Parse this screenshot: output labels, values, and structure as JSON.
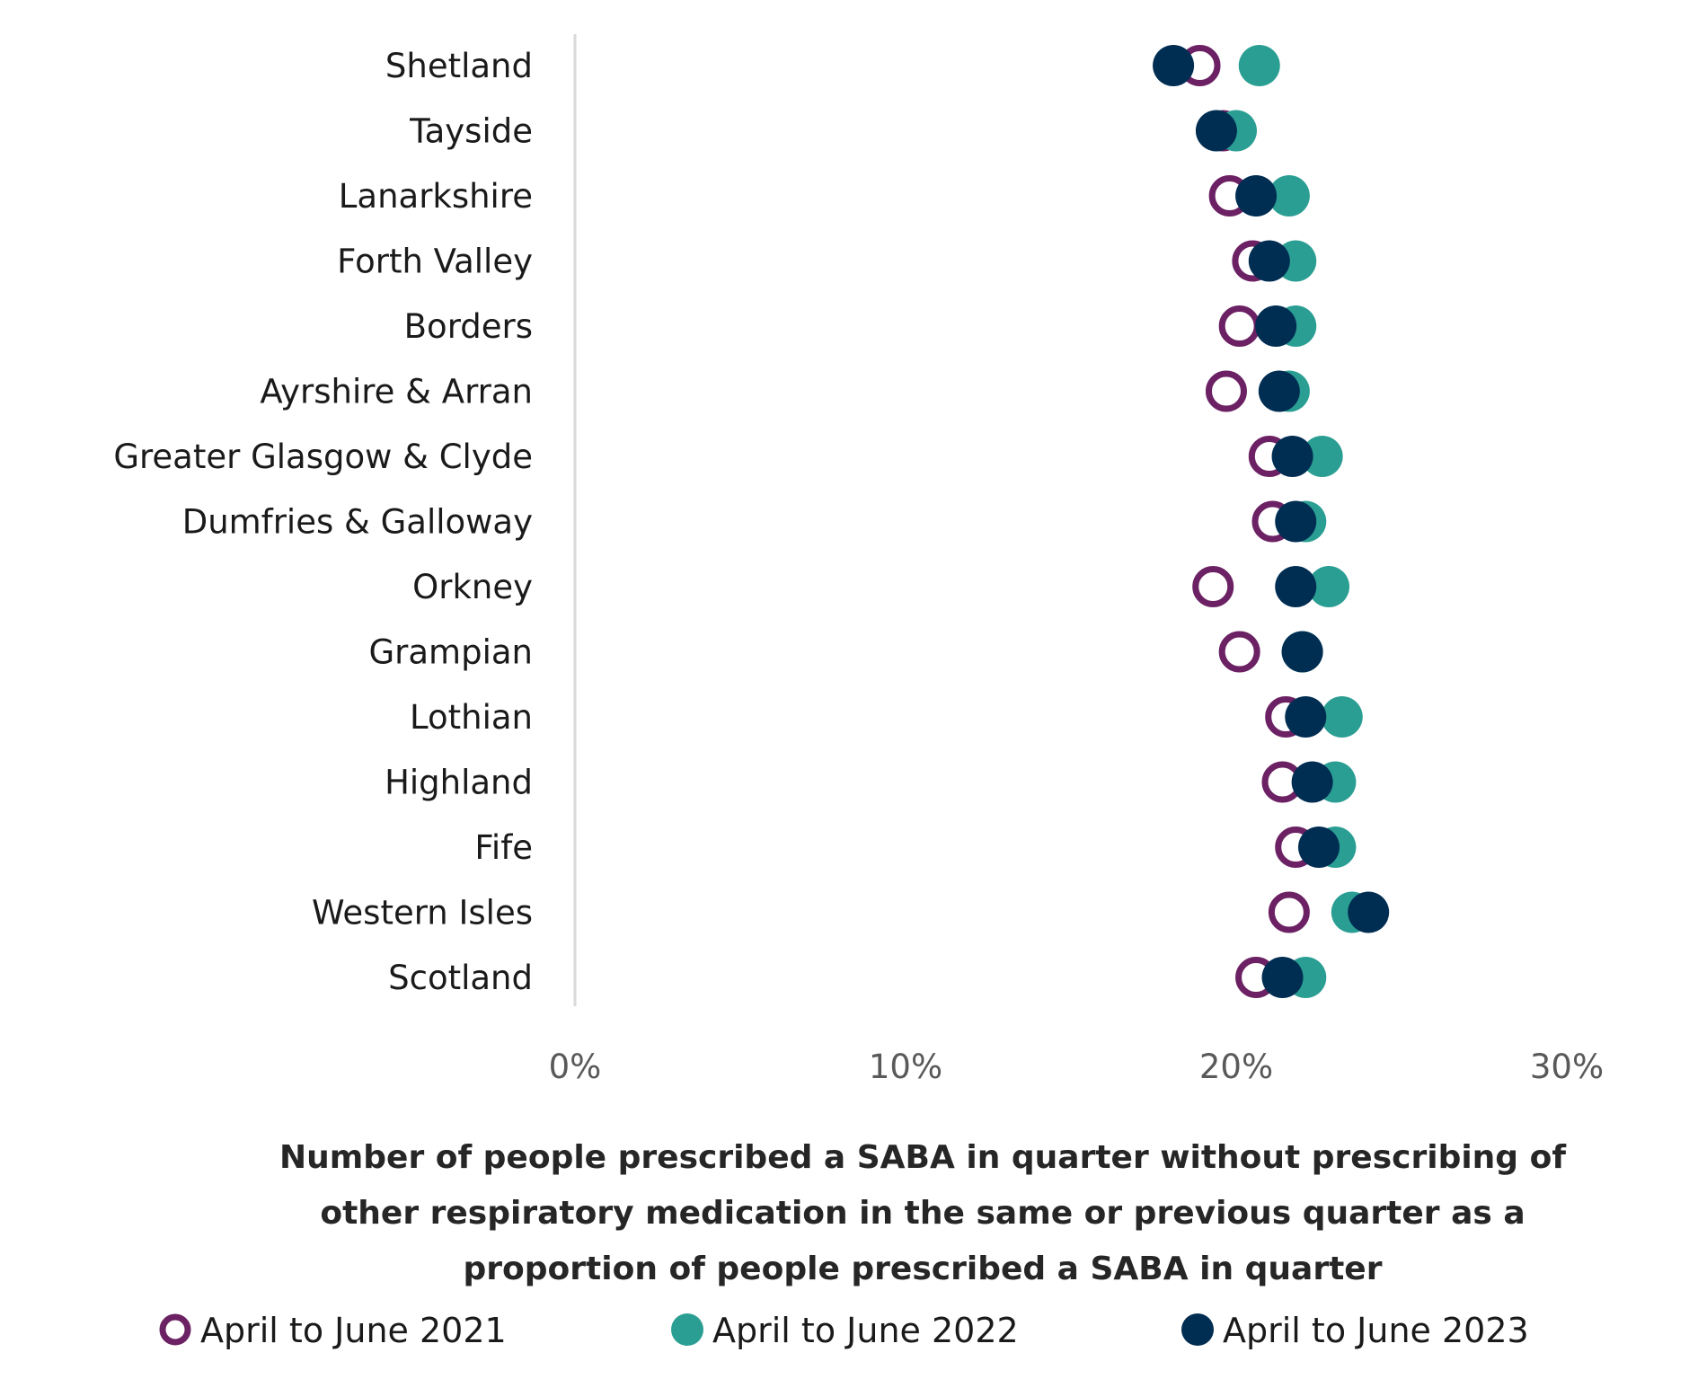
{
  "chart_data": {
    "type": "scatter",
    "orientation": "horizontal-dot-plot",
    "title": "",
    "xlabel_lines": [
      "Number of people prescribed a SABA in quarter without prescribing of",
      "other respiratory medication in the same or previous quarter as a",
      "proportion of people prescribed a SABA in quarter"
    ],
    "ylabel": "",
    "xlim": [
      0,
      30
    ],
    "x_ticks": [
      0,
      10,
      20,
      30
    ],
    "x_tick_labels": [
      "0%",
      "10%",
      "20%",
      "30%"
    ],
    "grid": false,
    "legend_position": "bottom",
    "categories": [
      "Shetland",
      "Tayside",
      "Lanarkshire",
      "Forth Valley",
      "Borders",
      "Ayrshire & Arran",
      "Greater Glasgow & Clyde",
      "Dumfries & Galloway",
      "Orkney",
      "Grampian",
      "Lothian",
      "Highland",
      "Fife",
      "Western Isles",
      "Scotland"
    ],
    "series": [
      {
        "name": "April to June 2021",
        "color": "#6B2163",
        "marker": "ring",
        "values": [
          18.9,
          19.6,
          19.8,
          20.5,
          20.1,
          19.7,
          21.0,
          21.1,
          19.3,
          20.1,
          21.5,
          21.4,
          21.8,
          21.6,
          20.6
        ]
      },
      {
        "name": "April to June 2022",
        "color": "#2B9E93",
        "marker": "dot",
        "values": [
          20.7,
          20.0,
          21.6,
          21.8,
          21.8,
          21.6,
          22.6,
          22.1,
          22.8,
          22.0,
          23.2,
          23.0,
          23.0,
          23.5,
          22.1
        ]
      },
      {
        "name": "April to June 2023",
        "color": "#002D52",
        "marker": "dot",
        "values": [
          18.1,
          19.4,
          20.6,
          21.0,
          21.2,
          21.3,
          21.7,
          21.8,
          21.8,
          22.0,
          22.1,
          22.3,
          22.5,
          24.0,
          21.4
        ]
      }
    ]
  }
}
